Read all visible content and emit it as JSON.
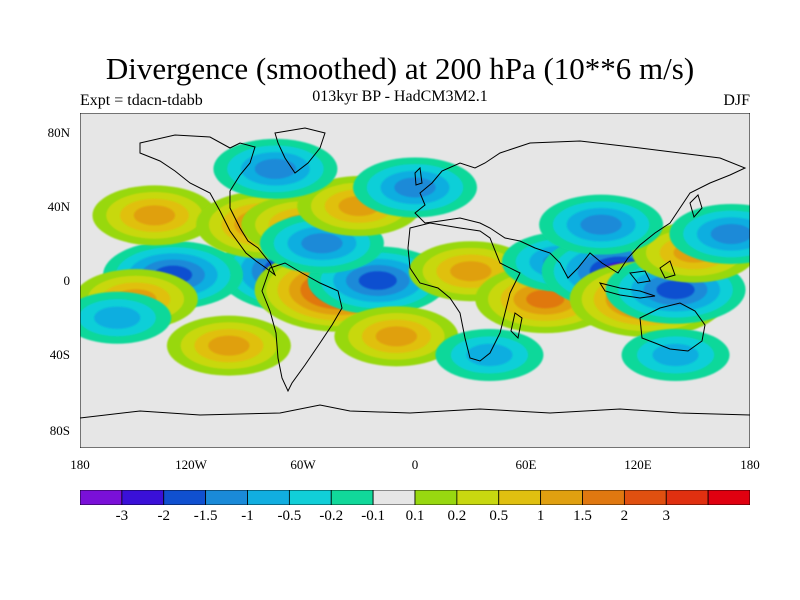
{
  "title": "Divergence (smoothed) at 200 hPa (10**6 m/s)",
  "subtitle": "013kyr BP - HadCM3M2.1",
  "expt": "Expt = tdacn-tdabb",
  "season": "DJF",
  "lat_ticks": [
    "80N",
    "40N",
    "0",
    "40S",
    "80S"
  ],
  "lon_ticks": [
    "180",
    "120W",
    "60W",
    "0",
    "60E",
    "120E",
    "180"
  ],
  "colorbar": {
    "labels": [
      "-3",
      "-2",
      "-1.5",
      "-1",
      "-0.5",
      "-0.2",
      "-0.1",
      "0.1",
      "0.2",
      "0.5",
      "1",
      "1.5",
      "2",
      "3"
    ],
    "colors": [
      "#7a10d8",
      "#3a10d8",
      "#1050d0",
      "#1a8ad8",
      "#11aee0",
      "#11cfd8",
      "#11d89a",
      "#e6e6e6",
      "#98d810",
      "#c8d810",
      "#e0c010",
      "#e0a010",
      "#e07810",
      "#e05010",
      "#e03010",
      "#e00010"
    ]
  },
  "map": {
    "type": "heatmap",
    "field": "200 hPa divergence anomaly",
    "units": "10**6 m/s",
    "lon_range": [
      -180,
      180
    ],
    "lat_range": [
      -90,
      90
    ],
    "features": [
      {
        "lon": -60,
        "lat": 5,
        "value": -3
      },
      {
        "lon": -130,
        "lat": 3,
        "value": -1.5
      },
      {
        "lon": -40,
        "lat": -5,
        "value": 3
      },
      {
        "lon": -20,
        "lat": 0,
        "value": -1.5
      },
      {
        "lon": -150,
        "lat": -10,
        "value": 1
      },
      {
        "lon": -140,
        "lat": 35,
        "value": 1
      },
      {
        "lon": -80,
        "lat": 30,
        "value": 1.5
      },
      {
        "lon": -60,
        "lat": 30,
        "value": 1
      },
      {
        "lon": -50,
        "lat": 20,
        "value": -1
      },
      {
        "lon": -30,
        "lat": 40,
        "value": 1
      },
      {
        "lon": 0,
        "lat": 50,
        "value": -1
      },
      {
        "lon": -75,
        "lat": 60,
        "value": -1
      },
      {
        "lon": 30,
        "lat": 5,
        "value": 1
      },
      {
        "lon": 70,
        "lat": -10,
        "value": 1.5
      },
      {
        "lon": 80,
        "lat": 10,
        "value": -1
      },
      {
        "lon": 110,
        "lat": 5,
        "value": -2
      },
      {
        "lon": 125,
        "lat": -10,
        "value": 2
      },
      {
        "lon": 140,
        "lat": -5,
        "value": -1.5
      },
      {
        "lon": 150,
        "lat": 15,
        "value": 1
      },
      {
        "lon": 100,
        "lat": 30,
        "value": -1
      },
      {
        "lon": 170,
        "lat": 25,
        "value": -1
      },
      {
        "lon": -100,
        "lat": -35,
        "value": 1
      },
      {
        "lon": -10,
        "lat": -30,
        "value": 1
      },
      {
        "lon": 40,
        "lat": -40,
        "value": -0.5
      },
      {
        "lon": 140,
        "lat": -40,
        "value": -0.5
      },
      {
        "lon": -160,
        "lat": -20,
        "value": -0.5
      }
    ]
  }
}
